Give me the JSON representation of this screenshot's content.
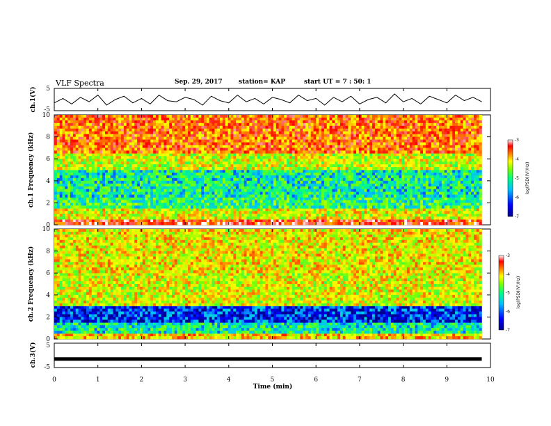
{
  "header": {
    "title": "VLF Spectra",
    "date": "Sep. 29, 2017",
    "station": "station= KAP",
    "start": "start UT =  7 : 50: 1"
  },
  "chart_data": [
    {
      "type": "line",
      "ylabel": "ch.1(V)",
      "ylim": [
        -5,
        5
      ],
      "yticks": [
        "5",
        "-5"
      ],
      "x": [
        0.0,
        0.2,
        0.4,
        0.6,
        0.8,
        1.0,
        1.2,
        1.4,
        1.6,
        1.8,
        2.0,
        2.2,
        2.4,
        2.6,
        2.8,
        3.0,
        3.2,
        3.4,
        3.6,
        3.8,
        4.0,
        4.2,
        4.4,
        4.6,
        4.8,
        5.0,
        5.2,
        5.4,
        5.6,
        5.8,
        6.0,
        6.2,
        6.4,
        6.6,
        6.8,
        7.0,
        7.2,
        7.4,
        7.6,
        7.8,
        8.0,
        8.2,
        8.4,
        8.6,
        8.8,
        9.0,
        9.2,
        9.4,
        9.6,
        9.8
      ],
      "y": [
        -1.5,
        0.5,
        -2.0,
        1.0,
        -1.0,
        2.0,
        -2.5,
        0.0,
        1.5,
        -1.5,
        0.5,
        -2.0,
        2.0,
        -0.5,
        -1.0,
        1.0,
        0.0,
        -2.5,
        1.5,
        -0.5,
        -1.5,
        2.0,
        -1.0,
        0.5,
        -2.0,
        1.0,
        0.0,
        -1.5,
        2.0,
        -0.5,
        0.5,
        -2.5,
        1.0,
        -1.0,
        1.5,
        -2.0,
        0.0,
        1.0,
        -1.5,
        2.5,
        -1.0,
        0.5,
        -2.0,
        1.5,
        0.0,
        -1.5,
        2.0,
        -0.5,
        1.0,
        -1.0
      ]
    },
    {
      "type": "heatmap",
      "ylabel": "ch.1 Frequency (kHz)",
      "ylim": [
        0,
        10
      ],
      "yticks": [
        "0",
        "2",
        "4",
        "6",
        "8",
        "10"
      ],
      "colorbar": {
        "label": "log(PSD)(V²/Hz)",
        "range": [
          -7,
          -3
        ],
        "ticks": [
          "-3",
          "-4",
          "-5",
          "-6",
          "-7"
        ]
      },
      "level_by_band": [
        {
          "band_khz": [
            0.0,
            0.5
          ],
          "level": -3.6
        },
        {
          "band_khz": [
            0.5,
            1.5
          ],
          "level": -4.6
        },
        {
          "band_khz": [
            1.5,
            2.5
          ],
          "level": -5.4
        },
        {
          "band_khz": [
            2.5,
            5.0
          ],
          "level": -5.6
        },
        {
          "band_khz": [
            5.0,
            6.5
          ],
          "level": -4.7
        },
        {
          "band_khz": [
            6.5,
            10.0
          ],
          "level": -3.9
        }
      ]
    },
    {
      "type": "heatmap",
      "ylabel": "ch.2 Frequency (kHz)",
      "ylim": [
        0,
        10
      ],
      "yticks": [
        "0",
        "2",
        "4",
        "6",
        "8",
        "10"
      ],
      "colorbar": {
        "label": "log(PSD)(V²/Hz)",
        "range": [
          -7,
          -3
        ],
        "ticks": [
          "-3",
          "-4",
          "-5",
          "-6",
          "-7"
        ]
      },
      "level_by_band": [
        {
          "band_khz": [
            0.0,
            0.5
          ],
          "level": -4.3
        },
        {
          "band_khz": [
            0.5,
            1.5
          ],
          "level": -5.6
        },
        {
          "band_khz": [
            1.5,
            3.0
          ],
          "level": -6.5
        },
        {
          "band_khz": [
            3.0,
            6.0
          ],
          "level": -4.6
        },
        {
          "band_khz": [
            6.0,
            10.0
          ],
          "level": -4.5
        }
      ]
    },
    {
      "type": "line",
      "ylabel": "ch.3(V)",
      "ylim": [
        -5,
        5
      ],
      "yticks": [
        "5",
        "-5"
      ],
      "x": [
        0.0,
        9.8
      ],
      "y": [
        -1.5,
        -1.5
      ]
    }
  ],
  "xaxis": {
    "label": "Time (min)",
    "lim": [
      0,
      10
    ],
    "ticks": [
      "0",
      "1",
      "2",
      "3",
      "4",
      "5",
      "6",
      "7",
      "8",
      "9",
      "10"
    ]
  },
  "colors": {
    "scale": [
      "#00008b",
      "#0000ff",
      "#00bfff",
      "#00ff80",
      "#80ff00",
      "#ffff00",
      "#ff8000",
      "#ff0000",
      "#ffffff"
    ],
    "line": "#000000"
  }
}
